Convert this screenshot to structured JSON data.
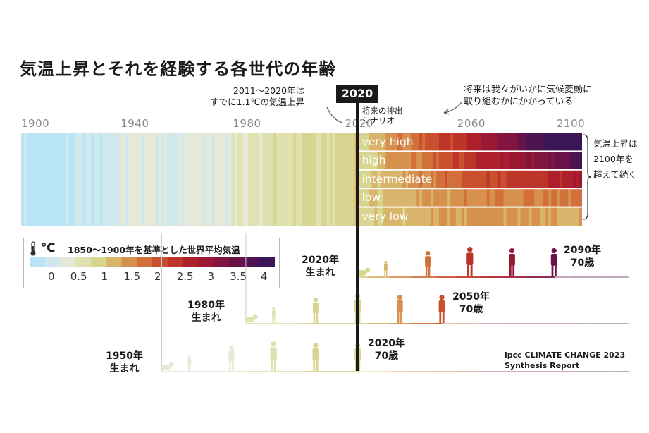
{
  "title": "気温上昇とそれを経験する各世代の年齢",
  "annotations": {
    "past_line1": "2011～2020年は",
    "past_line2": "すでに1.1℃の気温上昇",
    "marker_year": "2020",
    "scenario_caption_line1": "将来の排出",
    "scenario_caption_line2": "シナリオ",
    "future_line1": "将来は我々がいかに気候変動に",
    "future_line2": "取り組むかにかかっている",
    "after2100_line1": "気温上昇は",
    "after2100_line2": "2100年を",
    "after2100_line3": "超えて続く"
  },
  "legend": {
    "unit": "℃",
    "title": "1850～1900年を基準とした世界平均気温",
    "ticks": [
      "0",
      "0.5",
      "1",
      "1.5",
      "2",
      "2.5",
      "3",
      "3.5",
      "4"
    ],
    "colors": [
      "#b9e4f5",
      "#cfe8ee",
      "#e6e8d8",
      "#dfe2b0",
      "#d7d58f",
      "#d9b46b",
      "#d7914f",
      "#d2703c",
      "#c9502f",
      "#bd3428",
      "#ae1f2c",
      "#9a1834",
      "#82153f",
      "#67134a",
      "#4e1451",
      "#3a1658"
    ]
  },
  "chart_data": {
    "type": "heatmap",
    "title": "気温上昇とそれを経験する各世代の年齢",
    "x_axis": {
      "ticks": [
        "1900",
        "1940",
        "1980",
        "2020",
        "2060",
        "2100"
      ],
      "range": [
        1900,
        2100
      ]
    },
    "color_scale": {
      "unit": "℃",
      "min": 0,
      "max": 4
    },
    "historical_anomaly_c": {
      "1900": 0.1,
      "1910": 0.0,
      "1920": 0.3,
      "1930": 0.4,
      "1940": 0.6,
      "1950": 0.5,
      "1960": 0.55,
      "1970": 0.55,
      "1980": 0.75,
      "1990": 0.9,
      "2000": 1.0,
      "2011-2020": 1.1
    },
    "scenarios": [
      {
        "name": "very high",
        "anomaly_2060_c": 2.6,
        "anomaly_2100_c": 4.4
      },
      {
        "name": "high",
        "anomaly_2060_c": 2.4,
        "anomaly_2100_c": 3.6
      },
      {
        "name": "intermediate",
        "anomaly_2060_c": 2.1,
        "anomaly_2100_c": 2.7
      },
      {
        "name": "low",
        "anomaly_2060_c": 1.7,
        "anomaly_2100_c": 1.8
      },
      {
        "name": "very low",
        "anomaly_2060_c": 1.6,
        "anomaly_2100_c": 1.4
      }
    ],
    "generations": [
      {
        "born_label": "1950年生まれ",
        "birth_year": 1950,
        "end_year": 2020,
        "age_label": "2020年 70歳"
      },
      {
        "born_label": "1980年生まれ",
        "birth_year": 1980,
        "end_year": 2050,
        "age_label": "2050年 70歳"
      },
      {
        "born_label": "2020年生まれ",
        "birth_year": 2020,
        "end_year": 2090,
        "age_label": "2090年 70歳"
      }
    ]
  },
  "generations_text": {
    "g1950_born_line1": "1950年",
    "g1950_born_line2": "生まれ",
    "g1950_age_line1": "2020年",
    "g1950_age_line2": "70歳",
    "g1980_born_line1": "1980年",
    "g1980_born_line2": "生まれ",
    "g1980_age_line1": "2050年",
    "g1980_age_line2": "70歳",
    "g2020_born_line1": "2020年",
    "g2020_born_line2": "生まれ",
    "g2020_age_line1": "2090年",
    "g2020_age_line2": "70歳"
  },
  "credit": {
    "line1": "ipcc CLIMATE CHANGE 2023",
    "line2": "Synthesis Report"
  }
}
